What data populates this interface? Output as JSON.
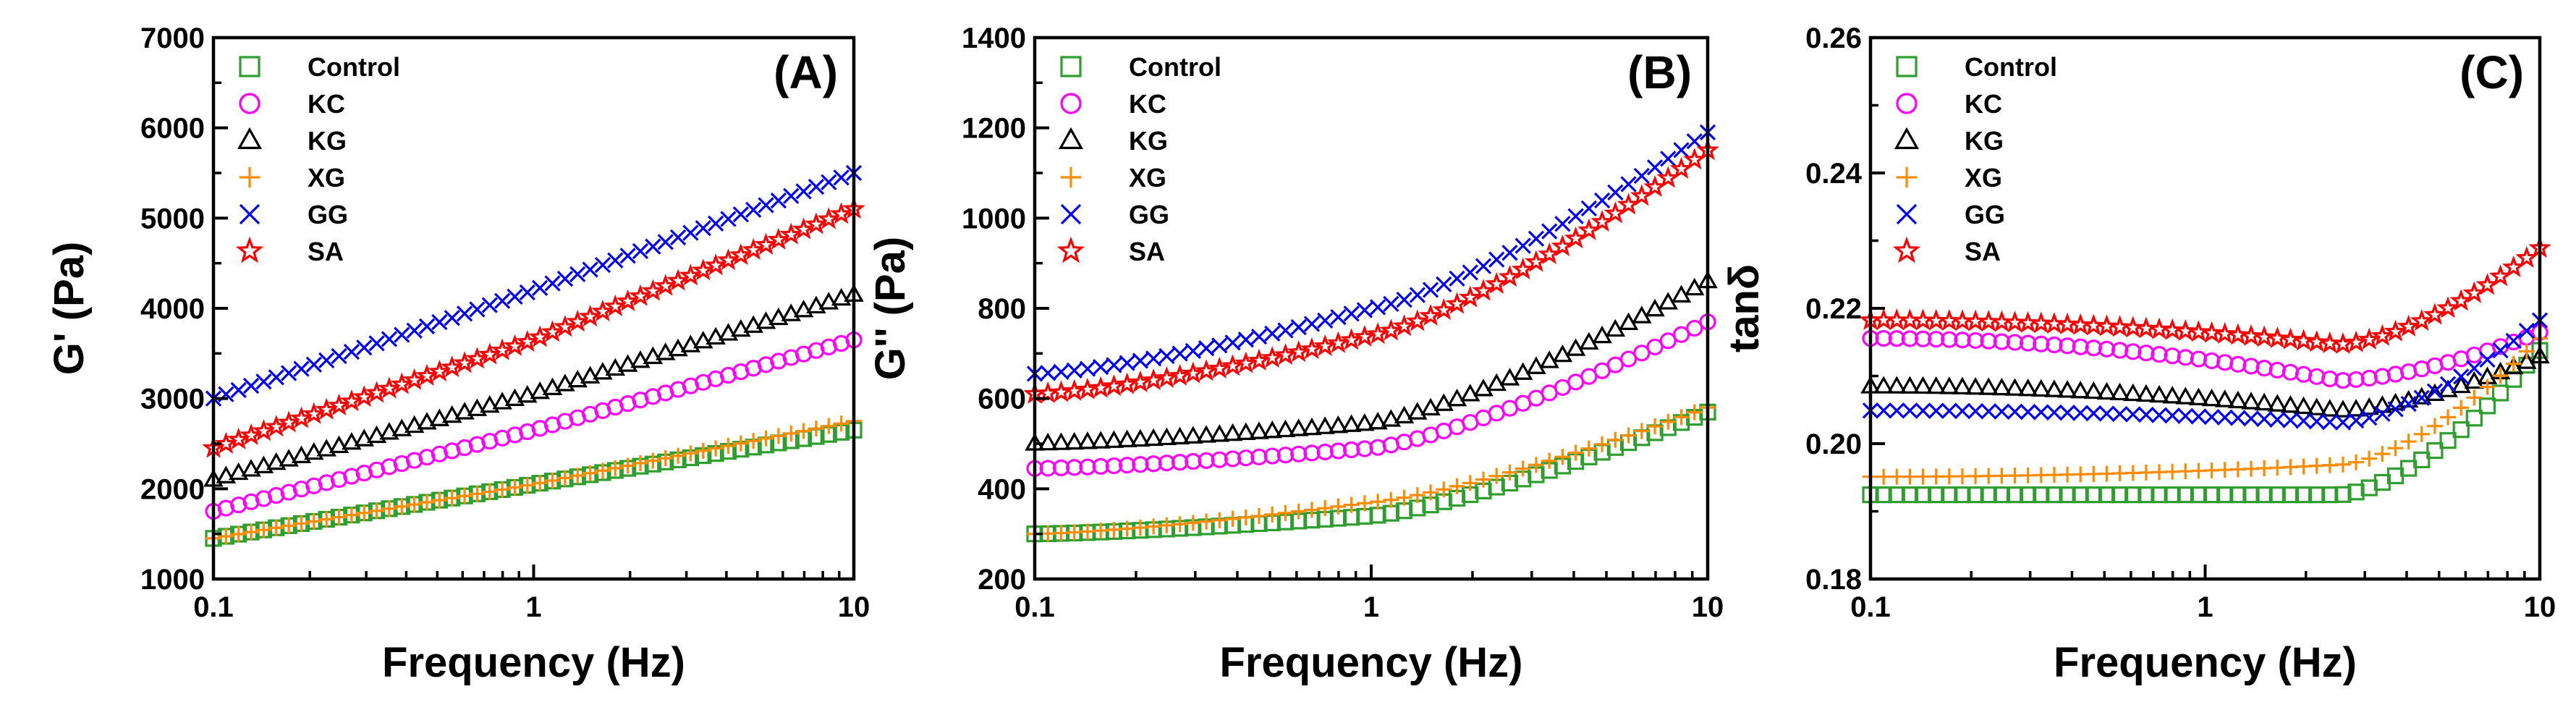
{
  "chart_data": [
    {
      "type": "scatter",
      "panel_label": "(A)",
      "xlabel": "Frequency (Hz)",
      "ylabel": "G' (Pa)",
      "xscale": "log",
      "xlim": [
        0.1,
        10
      ],
      "ylim": [
        1000,
        7000
      ],
      "xticks": [
        "0.1",
        "1",
        "10"
      ],
      "yticks": [
        "1000",
        "2000",
        "3000",
        "4000",
        "5000",
        "6000",
        "7000"
      ],
      "legend_position": "top-left",
      "series": [
        {
          "name": "Control",
          "color": "#2e9e2e",
          "marker": "square",
          "start": 1450,
          "end": 2650,
          "mid": 2050
        },
        {
          "name": "KC",
          "color": "#ff00ff",
          "marker": "circle",
          "start": 1750,
          "end": 3650,
          "mid": 2650
        },
        {
          "name": "KG",
          "color": "#000000",
          "marker": "triangle",
          "start": 2100,
          "end": 4150,
          "mid": 3050
        },
        {
          "name": "XG",
          "color": "#ff8c00",
          "marker": "plus",
          "start": 1450,
          "end": 2750,
          "mid": 2050
        },
        {
          "name": "GG",
          "color": "#0000ff",
          "marker": "x",
          "start": 3000,
          "end": 5500,
          "mid": 4200
        },
        {
          "name": "SA",
          "color": "#ff0000",
          "marker": "star",
          "start": 2450,
          "end": 5100,
          "mid": 3650
        }
      ]
    },
    {
      "type": "scatter",
      "panel_label": "(B)",
      "xlabel": "Frequency (Hz)",
      "ylabel": "G'' (Pa)",
      "xscale": "log",
      "xlim": [
        0.1,
        10
      ],
      "ylim": [
        200,
        1400
      ],
      "xticks": [
        "0.1",
        "1",
        "10"
      ],
      "yticks": [
        "200",
        "400",
        "600",
        "800",
        "1000",
        "1200",
        "1400"
      ],
      "legend_position": "top-left",
      "series": [
        {
          "name": "Control",
          "color": "#2e9e2e",
          "marker": "square",
          "start": 300,
          "end": 570,
          "mid": 340
        },
        {
          "name": "KC",
          "color": "#ff00ff",
          "marker": "circle",
          "start": 445,
          "end": 770,
          "mid": 490
        },
        {
          "name": "KG",
          "color": "#000000",
          "marker": "triangle",
          "start": 500,
          "end": 860,
          "mid": 545
        },
        {
          "name": "XG",
          "color": "#ff8c00",
          "marker": "plus",
          "start": 300,
          "end": 580,
          "mid": 370
        },
        {
          "name": "GG",
          "color": "#0000ff",
          "marker": "x",
          "start": 655,
          "end": 1190,
          "mid": 800
        },
        {
          "name": "SA",
          "color": "#ff0000",
          "marker": "star",
          "start": 610,
          "end": 1150,
          "mid": 740
        }
      ]
    },
    {
      "type": "scatter",
      "panel_label": "(C)",
      "xlabel": "Frequency (Hz)",
      "ylabel": "tanδ",
      "xscale": "log",
      "xlim": [
        0.1,
        10
      ],
      "ylim": [
        0.17,
        0.26
      ],
      "xticks": [
        "0.1",
        "1",
        "10"
      ],
      "yticks": [
        "0.18",
        "0.20",
        "0.22",
        "0.24",
        "0.26"
      ],
      "legend_position": "top-left",
      "series": [
        {
          "name": "Control",
          "color": "#2e9e2e",
          "marker": "square",
          "start": 0.184,
          "end": 0.208,
          "mid": 0.184
        },
        {
          "name": "KC",
          "color": "#ff00ff",
          "marker": "circle",
          "start": 0.21,
          "end": 0.211,
          "mid": 0.203
        },
        {
          "name": "KG",
          "color": "#000000",
          "marker": "triangle",
          "start": 0.202,
          "end": 0.207,
          "mid": 0.198
        },
        {
          "name": "XG",
          "color": "#ff8c00",
          "marker": "plus",
          "start": 0.187,
          "end": 0.21,
          "mid": 0.189
        },
        {
          "name": "GG",
          "color": "#0000ff",
          "marker": "x",
          "start": 0.198,
          "end": 0.213,
          "mid": 0.196
        },
        {
          "name": "SA",
          "color": "#ff0000",
          "marker": "star",
          "start": 0.213,
          "end": 0.225,
          "mid": 0.209
        }
      ]
    }
  ]
}
